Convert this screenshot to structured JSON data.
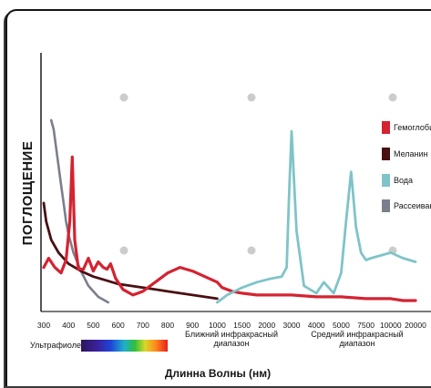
{
  "chart_data": {
    "type": "line",
    "ylabel": "ПОГЛОЩЕНИЕ",
    "xlabel": "Длинна Волны (нм)",
    "x_ticks": [
      "300",
      "400",
      "500",
      "600",
      "700",
      "800",
      "900",
      "1000",
      "1500",
      "2000",
      "3000",
      "4000",
      "5000",
      "7500",
      "10000",
      "20000"
    ],
    "x_scale": "piecewise (tick-indexed)",
    "y_range": [
      0,
      100
    ],
    "grid": false,
    "legend_position": "right",
    "regions": [
      {
        "name": "Ультрафиолет"
      },
      {
        "name": "Ближний инфракрасный диапазон",
        "lines": [
          "Ближний инфракрасный",
          "диапазон"
        ]
      },
      {
        "name": "Средний инфракрасный диапазон",
        "lines": [
          "Средний инфракрасный",
          "диапазон"
        ]
      }
    ],
    "series": [
      {
        "name": "Гемоглобин",
        "color": "#d42331",
        "x": [
          300,
          320,
          345,
          370,
          390,
          405,
          415,
          425,
          440,
          460,
          480,
          500,
          520,
          540,
          555,
          570,
          590,
          620,
          660,
          700,
          750,
          800,
          850,
          900,
          950,
          1000,
          1100,
          1300,
          1500,
          1800,
          2000,
          3000,
          4000,
          5000,
          7500,
          10000,
          15000,
          20000
        ],
        "y": [
          20,
          25,
          20,
          17,
          24,
          45,
          80,
          35,
          19,
          19,
          25,
          18,
          23,
          20,
          19,
          22,
          14,
          8,
          5,
          7,
          12,
          17,
          20,
          18,
          15,
          12,
          9,
          7,
          6,
          5,
          5,
          5,
          4,
          4,
          3,
          3,
          2,
          2
        ]
      },
      {
        "name": "Меланин",
        "color": "#4a0f12",
        "x": [
          300,
          310,
          330,
          360,
          400,
          450,
          500,
          550,
          600,
          650,
          700,
          750,
          800,
          850,
          900,
          950,
          1000
        ],
        "y": [
          55,
          45,
          35,
          28,
          22,
          18,
          15,
          13,
          11,
          10,
          9,
          8,
          7,
          6,
          5,
          4,
          3
        ]
      },
      {
        "name": "Вода",
        "color": "#7fc4c8",
        "x": [
          1000,
          1200,
          1500,
          1800,
          2200,
          2600,
          2800,
          2900,
          3000,
          3200,
          3500,
          4000,
          4300,
          4700,
          5000,
          5500,
          6000,
          6500,
          7000,
          7500,
          8000,
          10000,
          15000,
          20000
        ],
        "y": [
          1,
          5,
          9,
          12,
          14,
          15,
          20,
          60,
          94,
          40,
          10,
          6,
          12,
          6,
          17,
          45,
          72,
          42,
          28,
          24,
          25,
          28,
          25,
          23
        ]
      },
      {
        "name": "Рассеивание",
        "color": "#7b7f8b",
        "x": [
          330,
          340,
          350,
          360,
          370,
          380,
          390,
          400,
          420,
          450,
          480,
          520,
          560
        ],
        "y": [
          100,
          95,
          85,
          75,
          65,
          55,
          45,
          38,
          28,
          18,
          10,
          4,
          1
        ]
      }
    ],
    "background_markers": {
      "color": "#cccccc",
      "rows": 2,
      "cols": 3
    }
  }
}
